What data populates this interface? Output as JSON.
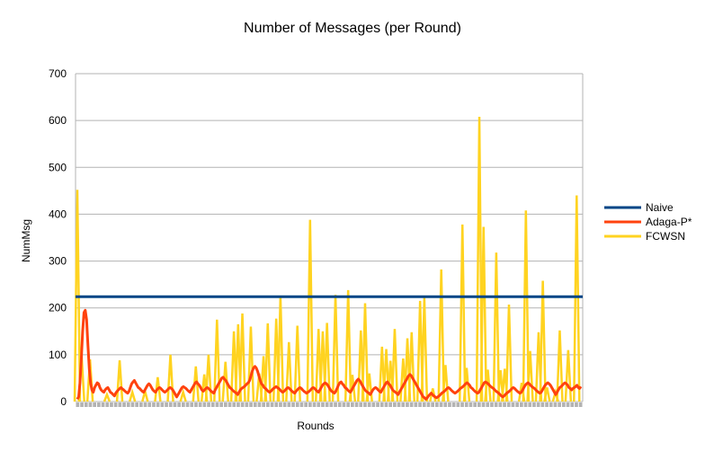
{
  "chart_data": {
    "type": "line",
    "title": "Number of Messages (per Round)",
    "xlabel": "Rounds",
    "ylabel": "NumMsg",
    "ylim": [
      0,
      700
    ],
    "yticks": [
      "0",
      "100",
      "200",
      "300",
      "400",
      "500",
      "600",
      "700"
    ],
    "grid": true,
    "legend_position": "right",
    "x_categories_shown": false,
    "series": [
      {
        "name": "Naive",
        "color": "#004586",
        "note": "constant",
        "values": [
          224,
          224
        ]
      },
      {
        "name": "Adaga-P*",
        "color": "#ff420e",
        "values": [
          5,
          10,
          40,
          90,
          150,
          190,
          195,
          175,
          120,
          70,
          40,
          25,
          20,
          30,
          35,
          40,
          38,
          30,
          25,
          22,
          20,
          25,
          28,
          30,
          25,
          20,
          18,
          15,
          12,
          18,
          22,
          25,
          28,
          30,
          27,
          25,
          22,
          20,
          18,
          22,
          30,
          38,
          42,
          45,
          40,
          35,
          30,
          28,
          25,
          22,
          20,
          25,
          30,
          35,
          38,
          35,
          30,
          25,
          22,
          20,
          25,
          28,
          30,
          28,
          25,
          22,
          20,
          22,
          25,
          28,
          30,
          28,
          25,
          20,
          15,
          10,
          15,
          20,
          25,
          30,
          32,
          30,
          28,
          25,
          22,
          20,
          25,
          30,
          35,
          40,
          42,
          38,
          35,
          30,
          25,
          22,
          25,
          28,
          30,
          28,
          25,
          22,
          20,
          18,
          25,
          30,
          35,
          40,
          45,
          50,
          52,
          48,
          45,
          40,
          35,
          30,
          28,
          25,
          22,
          20,
          18,
          15,
          20,
          25,
          28,
          30,
          32,
          35,
          38,
          40,
          45,
          55,
          65,
          72,
          75,
          72,
          65,
          55,
          45,
          38,
          35,
          30,
          28,
          25,
          22,
          20,
          22,
          25,
          28,
          30,
          32,
          30,
          28,
          25,
          22,
          20,
          22,
          25,
          28,
          30,
          28,
          25,
          22,
          20,
          18,
          22,
          25,
          28,
          30,
          28,
          25,
          22,
          20,
          18,
          20,
          22,
          25,
          28,
          30,
          28,
          25,
          22,
          20,
          25,
          30,
          35,
          38,
          40,
          38,
          35,
          30,
          25,
          22,
          20,
          18,
          22,
          28,
          35,
          40,
          42,
          38,
          35,
          30,
          28,
          25,
          22,
          20,
          25,
          30,
          35,
          40,
          45,
          48,
          45,
          40,
          35,
          30,
          25,
          22,
          20,
          18,
          15,
          20,
          25,
          28,
          30,
          28,
          25,
          22,
          20,
          25,
          30,
          35,
          40,
          42,
          38,
          35,
          30,
          25,
          22,
          20,
          18,
          15,
          20,
          25,
          30,
          35,
          40,
          45,
          50,
          55,
          58,
          55,
          50,
          45,
          40,
          35,
          30,
          25,
          20,
          15,
          10,
          8,
          5,
          8,
          12,
          15,
          18,
          15,
          12,
          10,
          8,
          10,
          12,
          15,
          18,
          20,
          22,
          25,
          28,
          30,
          28,
          25,
          22,
          20,
          18,
          20,
          22,
          25,
          28,
          30,
          32,
          35,
          38,
          40,
          38,
          35,
          30,
          28,
          25,
          22,
          20,
          18,
          20,
          25,
          30,
          35,
          40,
          42,
          40,
          38,
          35,
          32,
          30,
          28,
          25,
          22,
          20,
          18,
          15,
          12,
          10,
          12,
          15,
          18,
          20,
          22,
          25,
          28,
          30,
          28,
          25,
          22,
          20,
          18,
          20,
          25,
          30,
          35,
          38,
          40,
          38,
          35,
          32,
          30,
          28,
          25,
          22,
          20,
          18,
          20,
          25,
          30,
          35,
          38,
          40,
          38,
          35,
          30,
          25,
          20,
          15,
          20,
          25,
          30,
          32,
          35,
          38,
          40,
          38,
          35,
          30,
          28,
          25,
          28,
          30,
          32,
          35,
          30,
          28,
          32
        ]
      },
      {
        "name": "FCWSN",
        "color": "#ffd320",
        "note": "spike series, round index and peak value",
        "spikes": [
          [
            0,
            452
          ],
          [
            1,
            100
          ],
          [
            3,
            90
          ],
          [
            7,
            15
          ],
          [
            10,
            88
          ],
          [
            13,
            20
          ],
          [
            16,
            22
          ],
          [
            19,
            52
          ],
          [
            22,
            100
          ],
          [
            25,
            20
          ],
          [
            28,
            75
          ],
          [
            30,
            58
          ],
          [
            31,
            100
          ],
          [
            33,
            175
          ],
          [
            35,
            85
          ],
          [
            37,
            150
          ],
          [
            38,
            165
          ],
          [
            39,
            188
          ],
          [
            41,
            160
          ],
          [
            43,
            60
          ],
          [
            44,
            97
          ],
          [
            45,
            167
          ],
          [
            47,
            177
          ],
          [
            48,
            225
          ],
          [
            50,
            127
          ],
          [
            52,
            162
          ],
          [
            55,
            388
          ],
          [
            57,
            155
          ],
          [
            58,
            150
          ],
          [
            59,
            168
          ],
          [
            61,
            228
          ],
          [
            64,
            238
          ],
          [
            65,
            57
          ],
          [
            67,
            152
          ],
          [
            68,
            210
          ],
          [
            69,
            60
          ],
          [
            72,
            117
          ],
          [
            73,
            112
          ],
          [
            74,
            87
          ],
          [
            75,
            155
          ],
          [
            77,
            92
          ],
          [
            78,
            135
          ],
          [
            79,
            148
          ],
          [
            81,
            215
          ],
          [
            82,
            222
          ],
          [
            84,
            28
          ],
          [
            86,
            282
          ],
          [
            87,
            78
          ],
          [
            91,
            378
          ],
          [
            92,
            72
          ],
          [
            95,
            608
          ],
          [
            96,
            373
          ],
          [
            97,
            68
          ],
          [
            99,
            318
          ],
          [
            100,
            67
          ],
          [
            101,
            70
          ],
          [
            102,
            207
          ],
          [
            105,
            40
          ],
          [
            106,
            408
          ],
          [
            107,
            108
          ],
          [
            109,
            148
          ],
          [
            110,
            258
          ],
          [
            111,
            30
          ],
          [
            113,
            20
          ],
          [
            114,
            152
          ],
          [
            116,
            110
          ],
          [
            118,
            440
          ]
        ]
      }
    ]
  }
}
